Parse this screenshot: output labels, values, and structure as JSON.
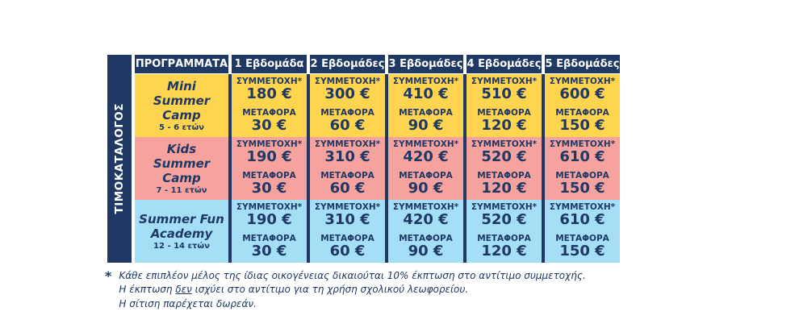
{
  "sidebar": {
    "label": "ΤΙΜΟΚΑΤΑΛΟΓΟΣ"
  },
  "table": {
    "header": [
      "ΠΡΟΓΡΑΜΜΑΤΑ",
      "1 Εβδομάδα",
      "2 Εβδομάδες",
      "3 Εβδομάδες",
      "4 Εβδομάδες",
      "5 Εβδομάδες"
    ],
    "labels": {
      "participation": "ΣΥΜΜΕΤΟΧΗ*",
      "transport": "ΜΕΤΑΦΟΡΑ"
    },
    "rows": [
      {
        "program": "Mini Summer Camp",
        "ages": "5 - 6 ετών",
        "color": "#FFD44F",
        "cells": [
          {
            "participation": "180 €",
            "transport": "30 €"
          },
          {
            "participation": "300 €",
            "transport": "60 €"
          },
          {
            "participation": "410 €",
            "transport": "90 €"
          },
          {
            "participation": "510 €",
            "transport": "120 €"
          },
          {
            "participation": "600 €",
            "transport": "150 €"
          }
        ]
      },
      {
        "program": "Kids Summer Camp",
        "ages": "7 - 11 ετών",
        "color": "#F6A3A0",
        "cells": [
          {
            "participation": "190 €",
            "transport": "30 €"
          },
          {
            "participation": "310 €",
            "transport": "60 €"
          },
          {
            "participation": "420 €",
            "transport": "90 €"
          },
          {
            "participation": "520 €",
            "transport": "120 €"
          },
          {
            "participation": "610 €",
            "transport": "150 €"
          }
        ]
      },
      {
        "program": "Summer Fun Academy",
        "ages": "12 - 14 ετών",
        "color": "#A4DFF5",
        "cells": [
          {
            "participation": "190 €",
            "transport": "30 €"
          },
          {
            "participation": "310 €",
            "transport": "60 €"
          },
          {
            "participation": "420 €",
            "transport": "90 €"
          },
          {
            "participation": "520 €",
            "transport": "120 €"
          },
          {
            "participation": "610 €",
            "transport": "150 €"
          }
        ]
      }
    ]
  },
  "footnote": {
    "asterisk": "*",
    "line1": "Κάθε επιπλέον μέλος της ίδιας οικογένειας δικαιούται 10% έκπτωση στο αντίτιμο συμμετοχής.",
    "line2_before": "Η έκπτωση ",
    "line2_underlined": "δεν",
    "line2_after": " ισχύει στο αντίτιμο για τη χρήση σχολικού λεωφορείου.",
    "line3": "Η σίτιση παρέχεται δωρεάν."
  },
  "colors": {
    "navy": "#1F3864",
    "header_text": "#FFFFFF",
    "row_yellow": "#FFD44F",
    "row_pink": "#F6A3A0",
    "row_blue": "#A4DFF5"
  }
}
